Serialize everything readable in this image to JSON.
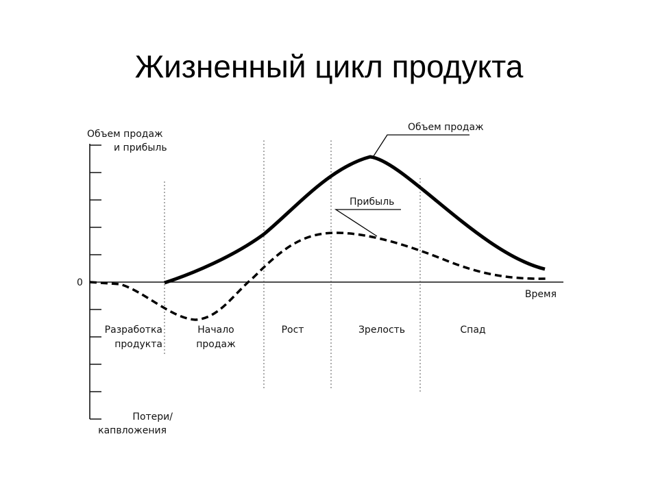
{
  "title": "Жизненный цикл продукта",
  "axes": {
    "y_top": [
      "Объем продаж",
      "и прибыль"
    ],
    "zero": "0",
    "x": "Время",
    "y_bottom": [
      "Потери/",
      "капвложения"
    ]
  },
  "curves": {
    "sales": "Объем продаж",
    "profit": "Прибыль"
  },
  "stages": [
    [
      "Разработка",
      "продукта"
    ],
    [
      "Начало",
      "продаж"
    ],
    [
      "Рост"
    ],
    [
      "Зрелость"
    ],
    [
      "Спад"
    ]
  ]
}
